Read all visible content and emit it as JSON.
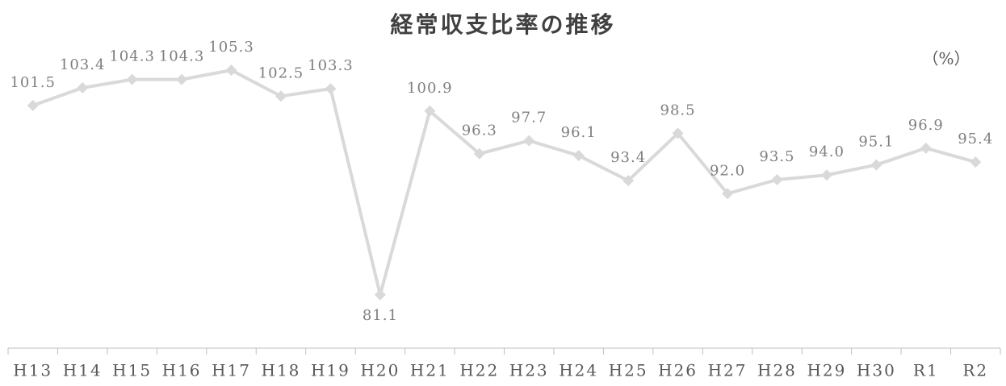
{
  "chart_data": {
    "type": "line",
    "title": "経常収支比率の推移",
    "unit_label": "（%）",
    "categories": [
      "H13",
      "H14",
      "H15",
      "H16",
      "H17",
      "H18",
      "H19",
      "H20",
      "H21",
      "H22",
      "H23",
      "H24",
      "H25",
      "H26",
      "H27",
      "H28",
      "H29",
      "H30",
      "R1",
      "R2"
    ],
    "values": [
      101.5,
      103.4,
      104.3,
      104.3,
      105.3,
      102.5,
      103.3,
      81.1,
      100.9,
      96.3,
      97.7,
      96.1,
      93.4,
      98.5,
      92.0,
      93.5,
      94.0,
      95.1,
      96.9,
      95.4
    ],
    "value_labels": [
      "101.5",
      "103.4",
      "104.3",
      "104.3",
      "105.3",
      "102.5",
      "103.3",
      "81.1",
      "100.9",
      "96.3",
      "97.7",
      "96.1",
      "93.4",
      "98.5",
      "92.0",
      "93.5",
      "94.0",
      "95.1",
      "96.9",
      "95.4"
    ],
    "color": "#d9d9d9",
    "ylim": [
      75,
      110
    ]
  }
}
